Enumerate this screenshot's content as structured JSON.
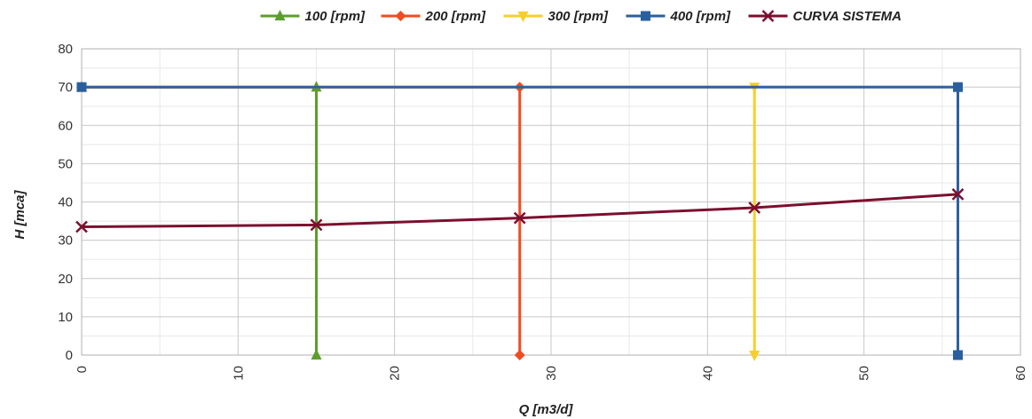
{
  "chart_data": {
    "type": "line",
    "xlabel": "Q [m3/d]",
    "ylabel": "H [mca]",
    "xlim": [
      0,
      60
    ],
    "ylim": [
      0,
      80
    ],
    "xticks": [
      0,
      10,
      20,
      30,
      40,
      50,
      60
    ],
    "yticks": [
      0,
      10,
      20,
      30,
      40,
      50,
      60,
      70,
      80
    ],
    "grid": true,
    "legend_position": "top",
    "series": [
      {
        "name": "100 [rpm]",
        "color": "#5c9e2e",
        "marker": "triangle-up",
        "points": [
          [
            0,
            70
          ],
          [
            15,
            70
          ],
          [
            15,
            0
          ]
        ]
      },
      {
        "name": "200 [rpm]",
        "color": "#f04b22",
        "marker": "diamond",
        "points": [
          [
            0,
            70
          ],
          [
            28,
            70
          ],
          [
            28,
            0
          ]
        ]
      },
      {
        "name": "300 [rpm]",
        "color": "#f7cf2a",
        "marker": "triangle-down",
        "points": [
          [
            0,
            70
          ],
          [
            43,
            70
          ],
          [
            43,
            0
          ]
        ]
      },
      {
        "name": "400 [rpm]",
        "color": "#2a5f9e",
        "marker": "square",
        "points": [
          [
            0,
            70
          ],
          [
            56,
            70
          ],
          [
            56,
            0
          ]
        ]
      },
      {
        "name": "CURVA SISTEMA",
        "color": "#7b0f2e",
        "marker": "x",
        "points": [
          [
            0,
            33.5
          ],
          [
            15,
            34
          ],
          [
            28,
            35.8
          ],
          [
            43,
            38.5
          ],
          [
            56,
            42
          ]
        ]
      }
    ]
  }
}
